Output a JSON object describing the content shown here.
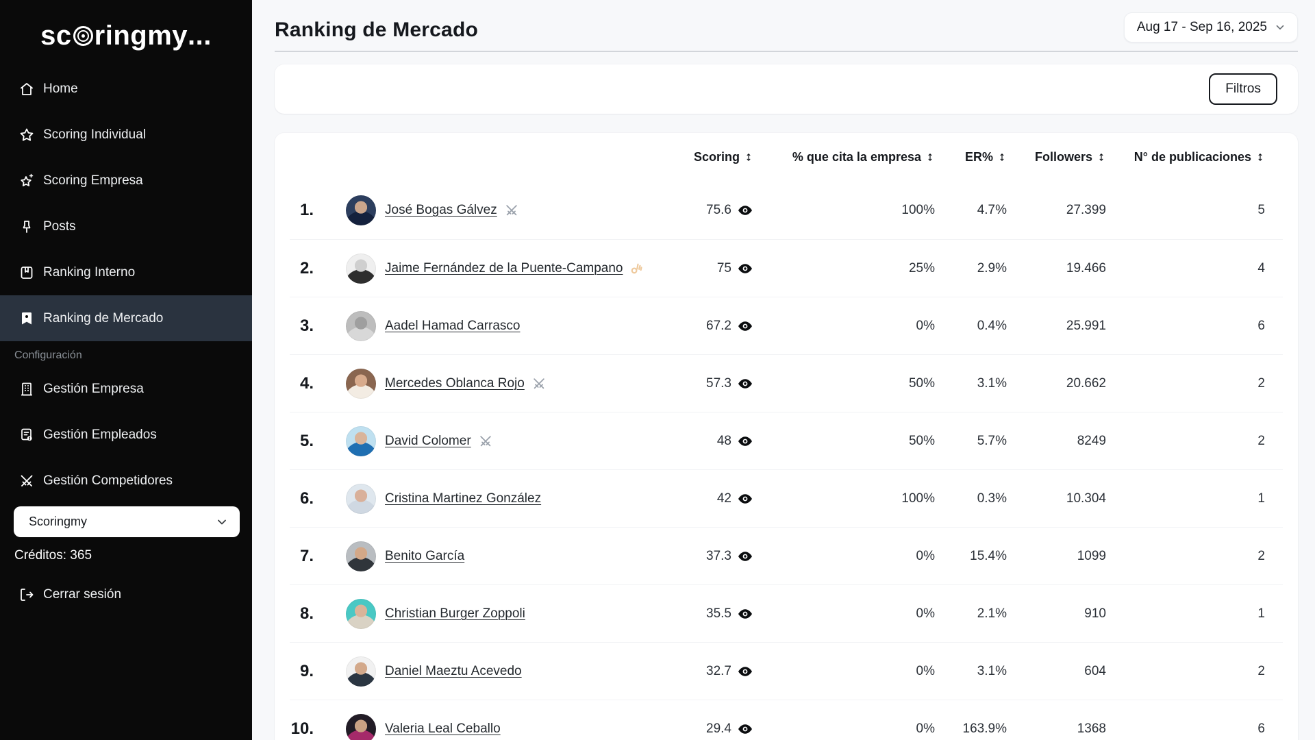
{
  "brand": {
    "pre": "sc",
    "ring": "ring",
    "my": "my",
    "dots": "..."
  },
  "sidebar": {
    "items": [
      {
        "label": "Home",
        "icon": "home-icon",
        "active": false
      },
      {
        "label": "Scoring Individual",
        "icon": "star-icon",
        "active": false
      },
      {
        "label": "Scoring Empresa",
        "icon": "star-sparkle-icon",
        "active": false
      },
      {
        "label": "Posts",
        "icon": "pin-icon",
        "active": false
      },
      {
        "label": "Ranking Interno",
        "icon": "bookmark-square-icon",
        "active": false
      },
      {
        "label": "Ranking de Mercado",
        "icon": "bookmark-badge-icon",
        "active": true
      }
    ],
    "section_label": "Configuración",
    "config_items": [
      {
        "label": "Gestión Empresa",
        "icon": "building-icon",
        "active": false
      },
      {
        "label": "Gestión Empleados",
        "icon": "employees-icon",
        "active": false
      },
      {
        "label": "Gestión Competidores",
        "icon": "swords-icon",
        "active": false
      }
    ],
    "company_select": {
      "value": "Scoringmy"
    },
    "credits_label": "Créditos: 365",
    "logout_label": "Cerrar sesión"
  },
  "header": {
    "title": "Ranking de Mercado",
    "date_range": "Aug 17 - Sep 16, 2025"
  },
  "filters": {
    "button_label": "Filtros"
  },
  "table": {
    "columns": [
      "Scoring",
      "% que cita la empresa",
      "ER%",
      "Followers",
      "N° de publicaciones"
    ],
    "rows": [
      {
        "rank": "1.",
        "name": "José Bogas Gálvez",
        "badge": "swords",
        "scoring": "75.6",
        "cita": "100%",
        "er": "4.7%",
        "followers": "27.399",
        "publications": "5",
        "avatar": {
          "skin": "#caa58c",
          "body": "#14213d",
          "bg": "#2c3e5e"
        }
      },
      {
        "rank": "2.",
        "name": "Jaime Fernández de la Puente-Campano",
        "badge": "ok-hand",
        "scoring": "75",
        "cita": "25%",
        "er": "2.9%",
        "followers": "19.466",
        "publications": "4",
        "avatar": {
          "skin": "#cfcfcf",
          "body": "#2e2e2e",
          "bg": "#efefef"
        }
      },
      {
        "rank": "3.",
        "name": "Aadel Hamad Carrasco",
        "badge": null,
        "scoring": "67.2",
        "cita": "0%",
        "er": "0.4%",
        "followers": "25.991",
        "publications": "6",
        "avatar": {
          "skin": "#9f9f9f",
          "body": "#d8d8d8",
          "bg": "#bdbdbd"
        }
      },
      {
        "rank": "4.",
        "name": "Mercedes Oblanca Rojo",
        "badge": "swords",
        "scoring": "57.3",
        "cita": "50%",
        "er": "3.1%",
        "followers": "20.662",
        "publications": "2",
        "avatar": {
          "skin": "#d8ab8d",
          "body": "#f3ece3",
          "bg": "#8a6650"
        }
      },
      {
        "rank": "5.",
        "name": "David Colomer",
        "badge": "swords",
        "scoring": "48",
        "cita": "50%",
        "er": "5.7%",
        "followers": "8249",
        "publications": "2",
        "avatar": {
          "skin": "#d9b49a",
          "body": "#1f6fb2",
          "bg": "#bfe0f0"
        }
      },
      {
        "rank": "6.",
        "name": "Cristina Martinez González",
        "badge": null,
        "scoring": "42",
        "cita": "100%",
        "er": "0.3%",
        "followers": "10.304",
        "publications": "1",
        "avatar": {
          "skin": "#d9b09a",
          "body": "#cfd8e2",
          "bg": "#dfe7ee"
        }
      },
      {
        "rank": "7.",
        "name": "Benito García",
        "badge": null,
        "scoring": "37.3",
        "cita": "0%",
        "er": "15.4%",
        "followers": "1099",
        "publications": "2",
        "avatar": {
          "skin": "#d3a888",
          "body": "#30353b",
          "bg": "#b9bdc1"
        }
      },
      {
        "rank": "8.",
        "name": "Christian Burger Zoppoli",
        "badge": null,
        "scoring": "35.5",
        "cita": "0%",
        "er": "2.1%",
        "followers": "910",
        "publications": "1",
        "avatar": {
          "skin": "#d9b49a",
          "body": "#d9d2c4",
          "bg": "#49c8c4"
        }
      },
      {
        "rank": "9.",
        "name": "Daniel Maeztu Acevedo",
        "badge": null,
        "scoring": "32.7",
        "cita": "0%",
        "er": "3.1%",
        "followers": "604",
        "publications": "2",
        "avatar": {
          "skin": "#d3a98b",
          "body": "#2b3642",
          "bg": "#f1f1f1"
        }
      },
      {
        "rank": "10.",
        "name": "Valeria Leal Ceballo",
        "badge": null,
        "scoring": "29.4",
        "cita": "0%",
        "er": "163.9%",
        "followers": "1368",
        "publications": "6",
        "avatar": {
          "skin": "#caa184",
          "body": "#a52a6a",
          "bg": "#221c26"
        }
      }
    ]
  },
  "colors": {
    "page_bg": "#f7f8fa",
    "sidebar_bg": "#0a0a0a",
    "active_item_bg": "#2a333f",
    "card_bg": "#ffffff",
    "muted": "#8b9198",
    "swords": "#9aa1ab"
  }
}
